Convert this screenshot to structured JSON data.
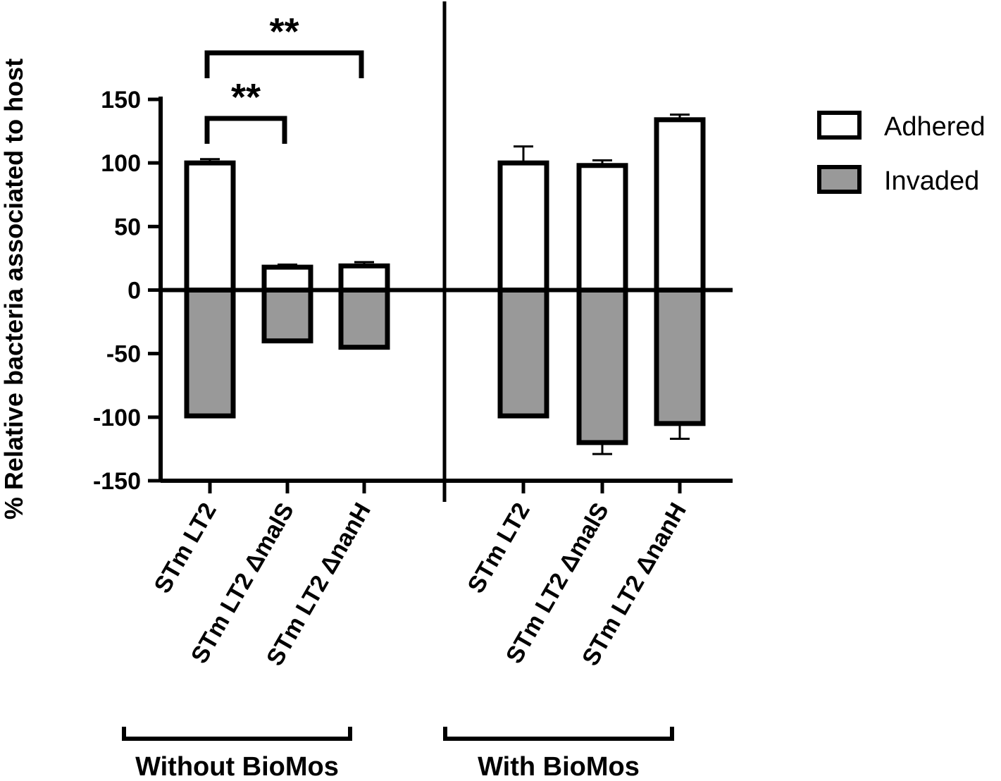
{
  "chart_data": {
    "type": "bar",
    "ylabel": "% Relative bacteria associated to host",
    "xlabel": "",
    "ylim": [
      -150,
      150
    ],
    "yticks": [
      150,
      100,
      50,
      0,
      -50,
      -100,
      -150
    ],
    "grid": false,
    "legend_position": "top-right",
    "categories": [
      "STm LT2",
      "STm LT2 ΔmalS",
      "STm LT2 ΔnanH",
      "STm LT2",
      "STm LT2 ΔmalS",
      "STm LT2 ΔnanH"
    ],
    "groups": [
      {
        "label": "Without BioMos",
        "category_indices": [
          0,
          1,
          2
        ]
      },
      {
        "label": "With BioMos",
        "category_indices": [
          3,
          4,
          5
        ]
      }
    ],
    "series": [
      {
        "name": "Adhered",
        "color": "#ffffff",
        "values": [
          100,
          18,
          19,
          100,
          98,
          134
        ],
        "errors": [
          3,
          2,
          3,
          13,
          4,
          4
        ]
      },
      {
        "name": "Invaded",
        "color": "#999999",
        "values": [
          -99,
          -40,
          -45,
          -99,
          -120,
          -105
        ],
        "errors": [
          1,
          1,
          1,
          1,
          9,
          12
        ]
      }
    ],
    "significance": [
      {
        "from": 0,
        "to": 1,
        "label": "**"
      },
      {
        "from": 0,
        "to": 2,
        "label": "**"
      }
    ]
  }
}
